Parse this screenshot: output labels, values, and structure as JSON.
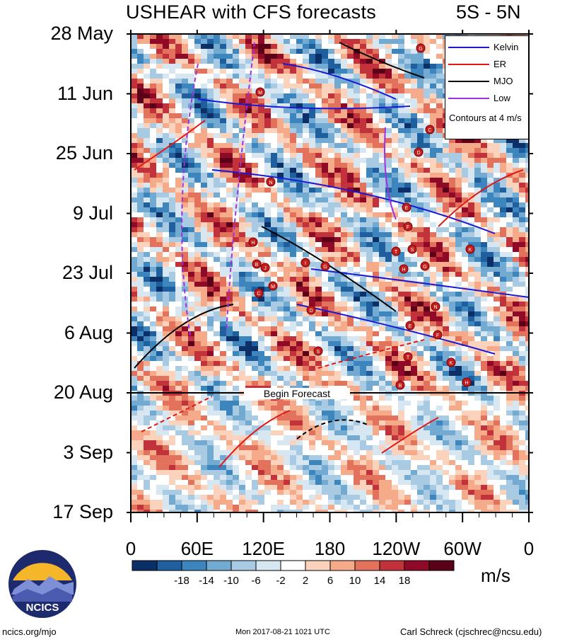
{
  "header": {
    "title": "USHEAR with CFS forecasts",
    "latitude_band": "5S - 5N"
  },
  "chart_data": {
    "type": "heatmap",
    "title": "USHEAR with CFS forecasts",
    "subtitle": "5S - 5N",
    "x_ticks": [
      "0",
      "60E",
      "120E",
      "180",
      "120W",
      "60W",
      "0"
    ],
    "y_ticks": [
      "28 May",
      "11 Jun",
      "25 Jun",
      "9 Jul",
      "23 Jul",
      "6 Aug",
      "20 Aug",
      "3 Sep",
      "17 Sep"
    ],
    "forecast_label": "Begin Forecast",
    "forecast_start": "20 Aug",
    "colorbar": {
      "labels": [
        "-18",
        "-14",
        "-10",
        "-6",
        "-2",
        "2",
        "6",
        "10",
        "14",
        "18"
      ],
      "units": "m/s",
      "colors": [
        "#0b2f66",
        "#1f5f9e",
        "#3d85bd",
        "#72aad2",
        "#a8cbe3",
        "#d6e7f1",
        "#ffffff",
        "#fbd3bd",
        "#f5aa8a",
        "#e2725b",
        "#c2323a",
        "#8f0a26",
        "#5c001a"
      ]
    },
    "legend": [
      {
        "name": "Kelvin",
        "color": "#1a1ad6"
      },
      {
        "name": "ER",
        "color": "#e01818"
      },
      {
        "name": "MJO",
        "color": "#000000"
      },
      {
        "name": "Low",
        "color": "#a030e0"
      }
    ],
    "legend_note": "Contours at 4 m/s",
    "contour_interval": 4,
    "storm_labels": [
      "G",
      "M",
      "C",
      "D",
      "N",
      "E",
      "F",
      "T",
      "S",
      "K",
      "H",
      "B",
      "J",
      "I",
      "G",
      "H"
    ]
  },
  "footer": {
    "logo_text": "NCICS",
    "left": "ncics.org/mjo",
    "center": "Mon 2017-08-21 1021 UTC",
    "right": "Carl Schreck (cjschrec@ncsu.edu)"
  }
}
